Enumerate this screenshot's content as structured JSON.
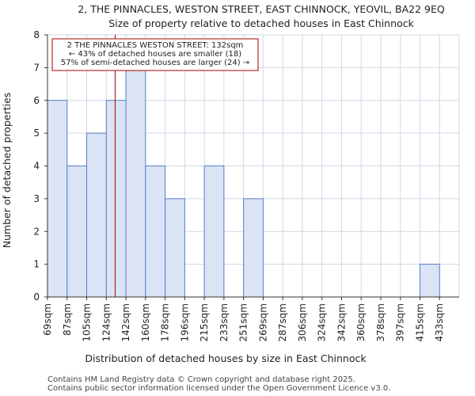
{
  "chart_data": {
    "type": "bar",
    "title": "2, THE PINNACLES, WESTON STREET, EAST CHINNOCK, YEOVIL, BA22 9EQ",
    "subtitle": "Size of property relative to detached houses in East Chinnock",
    "xlabel": "Distribution of detached houses by size in East Chinnock",
    "ylabel": "Number of detached properties",
    "categories": [
      "69sqm",
      "87sqm",
      "105sqm",
      "124sqm",
      "142sqm",
      "160sqm",
      "178sqm",
      "196sqm",
      "215sqm",
      "233sqm",
      "251sqm",
      "269sqm",
      "287sqm",
      "306sqm",
      "324sqm",
      "342sqm",
      "360sqm",
      "378sqm",
      "397sqm",
      "415sqm",
      "433sqm"
    ],
    "values": [
      6,
      4,
      5,
      6,
      7,
      4,
      3,
      0,
      4,
      0,
      3,
      0,
      0,
      0,
      0,
      0,
      0,
      0,
      0,
      1,
      0
    ],
    "ylim": [
      0,
      8
    ],
    "yticks": [
      0,
      1,
      2,
      3,
      4,
      5,
      6,
      7,
      8
    ],
    "grid": true,
    "bar_color": "#dae4f5",
    "bar_edge_color": "#5b7ec9",
    "marker": {
      "value_index": 3.45,
      "color": "#aa0000"
    },
    "annotation": {
      "lines": [
        "2 THE PINNACLES WESTON STREET: 132sqm",
        "← 43% of detached houses are smaller (18)",
        "57% of semi-detached houses are larger (24) →"
      ],
      "border_color": "#aa0000"
    }
  },
  "footer": {
    "line1": "Contains HM Land Registry data © Crown copyright and database right 2025.",
    "line2": "Contains public sector information licensed under the Open Government Licence v3.0."
  }
}
